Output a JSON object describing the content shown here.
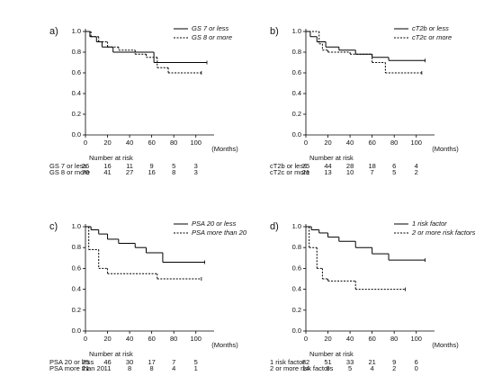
{
  "chart_data": [
    {
      "type": "step",
      "panel_label": "a)",
      "x_label": "(Months)",
      "xlim": [
        0,
        110
      ],
      "ylim": [
        0,
        1
      ],
      "xticks": [
        0,
        20,
        40,
        60,
        80,
        100
      ],
      "yticks": [
        {
          "value": 0,
          "label": "0.0"
        },
        {
          "value": 0.2,
          "label": "0.2"
        },
        {
          "value": 0.4,
          "label": "0.4"
        },
        {
          "value": 0.6,
          "label": "0.6"
        },
        {
          "value": 0.8,
          "label": "0.8"
        },
        {
          "value": 1,
          "label": "1.0"
        }
      ],
      "series": [
        {
          "name": "GS 7 or less",
          "color": "#000000",
          "dashed": false,
          "x": [
            0,
            4,
            10,
            15,
            25,
            45,
            62,
            110
          ],
          "values": [
            1,
            0.95,
            0.9,
            0.85,
            0.8,
            0.8,
            0.7,
            0.7
          ]
        },
        {
          "name": "GS 8 or more",
          "color": "#000000",
          "dashed": true,
          "x": [
            0,
            5,
            12,
            20,
            30,
            45,
            55,
            65,
            75,
            105
          ],
          "values": [
            1,
            0.95,
            0.9,
            0.85,
            0.82,
            0.78,
            0.75,
            0.65,
            0.6,
            0.6
          ]
        }
      ],
      "risk_table": {
        "title": "Number at risk",
        "rows": [
          {
            "label": "GS 7 or less",
            "values": [
              26,
              16,
              11,
              9,
              5,
              3
            ]
          },
          {
            "label": "GS 8 or more",
            "values": [
              70,
              41,
              27,
              16,
              8,
              3
            ]
          }
        ]
      }
    },
    {
      "type": "step",
      "panel_label": "b)",
      "x_label": "(Months)",
      "xlim": [
        0,
        110
      ],
      "ylim": [
        0,
        1
      ],
      "xticks": [
        0,
        20,
        40,
        60,
        80,
        100
      ],
      "yticks": [
        {
          "value": 0,
          "label": "0.0"
        },
        {
          "value": 0.2,
          "label": "0.2"
        },
        {
          "value": 0.4,
          "label": "0.4"
        },
        {
          "value": 0.6,
          "label": "0.6"
        },
        {
          "value": 0.8,
          "label": "0.8"
        },
        {
          "value": 1,
          "label": "1.0"
        }
      ],
      "series": [
        {
          "name": "cT2b or less",
          "color": "#000000",
          "dashed": false,
          "x": [
            0,
            4,
            10,
            18,
            30,
            45,
            60,
            75,
            108
          ],
          "values": [
            1,
            0.95,
            0.9,
            0.85,
            0.82,
            0.78,
            0.75,
            0.72,
            0.72
          ]
        },
        {
          "name": "cT2c or  more",
          "color": "#000000",
          "dashed": true,
          "x": [
            0,
            12,
            15,
            20,
            40,
            60,
            72,
            105
          ],
          "values": [
            1,
            0.88,
            0.82,
            0.8,
            0.78,
            0.7,
            0.6,
            0.6
          ]
        }
      ],
      "risk_table": {
        "title": "Number at risk",
        "rows": [
          {
            "label": "cT2b or less",
            "values": [
              75,
              44,
              28,
              18,
              6,
              4
            ]
          },
          {
            "label": "cT2c or more",
            "values": [
              21,
              13,
              10,
              7,
              5,
              2
            ]
          }
        ]
      }
    },
    {
      "type": "step",
      "panel_label": "c)",
      "x_label": "(Months)",
      "xlim": [
        0,
        110
      ],
      "ylim": [
        0,
        1
      ],
      "xticks": [
        0,
        20,
        40,
        60,
        80,
        100
      ],
      "yticks": [
        {
          "value": 0,
          "label": "0.0"
        },
        {
          "value": 0.2,
          "label": "0.2"
        },
        {
          "value": 0.4,
          "label": "0.4"
        },
        {
          "value": 0.6,
          "label": "0.6"
        },
        {
          "value": 0.8,
          "label": "0.8"
        },
        {
          "value": 1,
          "label": "1.0"
        }
      ],
      "series": [
        {
          "name": "PSA  20 or less",
          "color": "#000000",
          "dashed": false,
          "x": [
            0,
            5,
            12,
            20,
            30,
            45,
            55,
            70,
            108
          ],
          "values": [
            1,
            0.97,
            0.93,
            0.88,
            0.84,
            0.8,
            0.75,
            0.66,
            0.66
          ]
        },
        {
          "name": "PSA  more than 20",
          "color": "#000000",
          "dashed": true,
          "x": [
            0,
            3,
            12,
            20,
            65,
            105
          ],
          "values": [
            1,
            0.78,
            0.6,
            0.55,
            0.5,
            0.5
          ]
        }
      ],
      "risk_table": {
        "title": "Number at risk",
        "rows": [
          {
            "label": "PSA 20 or less",
            "values": [
              75,
              46,
              30,
              17,
              7,
              5
            ]
          },
          {
            "label": "PSA more than 20",
            "values": [
              21,
              11,
              8,
              8,
              4,
              1
            ]
          }
        ]
      }
    },
    {
      "type": "step",
      "panel_label": "d)",
      "x_label": "(Months)",
      "xlim": [
        0,
        110
      ],
      "ylim": [
        0,
        1
      ],
      "xticks": [
        0,
        20,
        40,
        60,
        80,
        100
      ],
      "yticks": [
        {
          "value": 0,
          "label": "0.0"
        },
        {
          "value": 0.2,
          "label": "0.2"
        },
        {
          "value": 0.4,
          "label": "0.4"
        },
        {
          "value": 0.6,
          "label": "0.6"
        },
        {
          "value": 0.8,
          "label": "0.8"
        },
        {
          "value": 1,
          "label": "1.0"
        }
      ],
      "series": [
        {
          "name": "1 risk factor",
          "color": "#000000",
          "dashed": false,
          "x": [
            0,
            5,
            12,
            20,
            30,
            45,
            60,
            75,
            108
          ],
          "values": [
            1,
            0.97,
            0.94,
            0.9,
            0.86,
            0.8,
            0.74,
            0.68,
            0.68
          ]
        },
        {
          "name": "2 or more risk factors",
          "color": "#000000",
          "dashed": true,
          "x": [
            0,
            3,
            10,
            15,
            20,
            45,
            90
          ],
          "values": [
            1,
            0.8,
            0.6,
            0.5,
            0.48,
            0.4,
            0.4
          ]
        }
      ],
      "risk_table": {
        "title": "Number at risk",
        "rows": [
          {
            "label": "1 risk factor",
            "values": [
              82,
              51,
              33,
              21,
              9,
              6
            ]
          },
          {
            "label": "2 or more risk factors",
            "values": [
              14,
              6,
              5,
              4,
              2,
              0
            ]
          }
        ]
      }
    }
  ]
}
